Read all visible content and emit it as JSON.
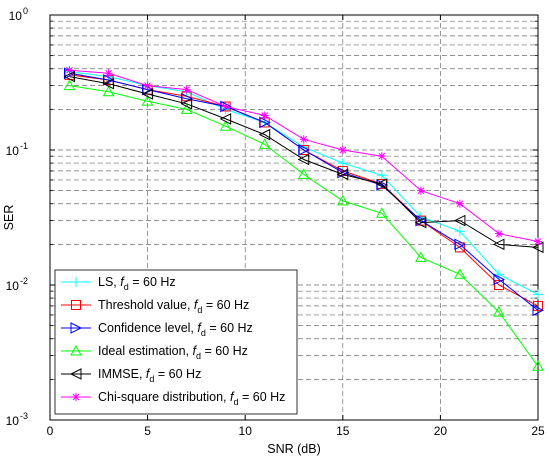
{
  "chart_data": {
    "type": "line",
    "xlabel": "SNR (dB)",
    "ylabel": "SER",
    "xlim": [
      0,
      25
    ],
    "ylim": [
      0.001,
      1
    ],
    "yscale": "log",
    "grid": true,
    "legend_position": "bottom-left",
    "x_ticks": [
      "0",
      "5",
      "10",
      "15",
      "20",
      "25"
    ],
    "y_ticks": [
      {
        "base": "10",
        "exp": "0"
      },
      {
        "base": "10",
        "exp": "-1"
      },
      {
        "base": "10",
        "exp": "-2"
      },
      {
        "base": "10",
        "exp": "-3"
      }
    ],
    "x": [
      1,
      3,
      5,
      7,
      9,
      11,
      13,
      15,
      17,
      19,
      21,
      23,
      25
    ],
    "series": [
      {
        "name": "LS",
        "name_suffix": ", ",
        "fd_label": "d",
        "fd_value": " = 60 Hz",
        "color": "#00ffff",
        "marker": "plus",
        "values": [
          0.38,
          0.35,
          0.3,
          0.27,
          0.2,
          0.16,
          0.105,
          0.08,
          0.065,
          0.032,
          0.025,
          0.012,
          0.0085
        ]
      },
      {
        "name": "Threshold value",
        "name_suffix": ", ",
        "fd_label": "d",
        "fd_value": " = 60 Hz",
        "color": "#ff0000",
        "marker": "square",
        "values": [
          0.36,
          0.33,
          0.28,
          0.25,
          0.21,
          0.16,
          0.1,
          0.07,
          0.056,
          0.03,
          0.019,
          0.01,
          0.007
        ]
      },
      {
        "name": "Confidence level",
        "name_suffix": ", ",
        "fd_label": "d",
        "fd_value": " = 60 Hz",
        "color": "#0000ff",
        "marker": "triangle-right",
        "values": [
          0.37,
          0.33,
          0.28,
          0.24,
          0.21,
          0.16,
          0.1,
          0.068,
          0.055,
          0.03,
          0.02,
          0.011,
          0.0065
        ]
      },
      {
        "name": "Ideal estimation",
        "name_suffix": ", ",
        "fd_label": "d",
        "fd_value": " = 60 Hz",
        "color": "#00ff00",
        "marker": "triangle-up",
        "values": [
          0.3,
          0.27,
          0.23,
          0.2,
          0.15,
          0.11,
          0.066,
          0.042,
          0.034,
          0.016,
          0.012,
          0.0063,
          0.0025
        ]
      },
      {
        "name": "IMMSE",
        "name_suffix": ", ",
        "fd_label": "d",
        "fd_value": " = 60 Hz",
        "color": "#000000",
        "marker": "triangle-left",
        "values": [
          0.35,
          0.31,
          0.26,
          0.22,
          0.17,
          0.13,
          0.085,
          0.066,
          0.056,
          0.029,
          0.03,
          0.02,
          0.019
        ]
      },
      {
        "name": "Chi-square distribution",
        "name_suffix": ", ",
        "fd_label": "d",
        "fd_value": " = 60 Hz",
        "color": "#ff00ff",
        "marker": "star",
        "values": [
          0.39,
          0.37,
          0.3,
          0.28,
          0.21,
          0.18,
          0.12,
          0.1,
          0.09,
          0.05,
          0.04,
          0.024,
          0.021
        ]
      }
    ]
  }
}
